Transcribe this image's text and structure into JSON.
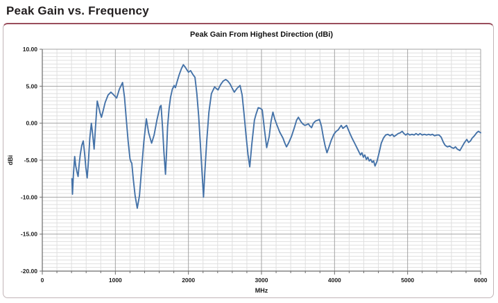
{
  "page_title": "Peak Gain vs. Frequency",
  "colors": {
    "line": "#4472a8",
    "grid_minor": "#dfdfdf",
    "grid_major": "#a3a3a3",
    "axis": "#6b6b6b",
    "text": "#1a1a1a",
    "panel_border": "#c2b4b7",
    "panel_border_top": "#9a4e5c"
  },
  "chart_data": {
    "type": "line",
    "title": "Peak Gain From Highest Direction (dBi)",
    "xlabel": "MHz",
    "ylabel": "dBi",
    "xlim": [
      0,
      6000
    ],
    "ylim": [
      -20,
      10
    ],
    "grid": true,
    "x_minor_step": 200,
    "y_minor_step": 0.5,
    "x_ticks": [
      {
        "v": 0,
        "label": "0"
      },
      {
        "v": 1000,
        "label": "1000"
      },
      {
        "v": 2000,
        "label": "2000"
      },
      {
        "v": 3000,
        "label": "3000"
      },
      {
        "v": 4000,
        "label": "4000"
      },
      {
        "v": 5000,
        "label": "5000"
      },
      {
        "v": 6000,
        "label": "6000"
      }
    ],
    "y_ticks": [
      {
        "v": 10,
        "label": "10.00"
      },
      {
        "v": 5,
        "label": "5.00"
      },
      {
        "v": 0,
        "label": "0.00"
      },
      {
        "v": -5,
        "label": "-5.00"
      },
      {
        "v": -10,
        "label": "-10.00"
      },
      {
        "v": -15,
        "label": "-15.00"
      },
      {
        "v": -20,
        "label": "-20.00"
      }
    ],
    "legend": "none",
    "series": [
      {
        "points": [
          [
            405,
            -7.5
          ],
          [
            413,
            -9.6
          ],
          [
            425,
            -7.0
          ],
          [
            443,
            -4.5
          ],
          [
            458,
            -5.8
          ],
          [
            475,
            -6.6
          ],
          [
            490,
            -7.2
          ],
          [
            505,
            -5.5
          ],
          [
            520,
            -4.2
          ],
          [
            540,
            -3.0
          ],
          [
            560,
            -2.4
          ],
          [
            578,
            -4.0
          ],
          [
            596,
            -6.0
          ],
          [
            614,
            -7.4
          ],
          [
            632,
            -5.0
          ],
          [
            650,
            -2.0
          ],
          [
            671,
            0.0
          ],
          [
            688,
            -1.4
          ],
          [
            709,
            -3.5
          ],
          [
            728,
            -0.5
          ],
          [
            752,
            3.0
          ],
          [
            772,
            2.2
          ],
          [
            790,
            1.4
          ],
          [
            810,
            0.8
          ],
          [
            835,
            1.8
          ],
          [
            860,
            2.8
          ],
          [
            900,
            3.8
          ],
          [
            939,
            4.2
          ],
          [
            970,
            3.9
          ],
          [
            1018,
            3.4
          ],
          [
            1055,
            4.6
          ],
          [
            1098,
            5.5
          ],
          [
            1125,
            3.5
          ],
          [
            1150,
            0.5
          ],
          [
            1175,
            -2.5
          ],
          [
            1200,
            -4.8
          ],
          [
            1212,
            -5.2
          ],
          [
            1225,
            -5.4
          ],
          [
            1245,
            -7.5
          ],
          [
            1270,
            -9.8
          ],
          [
            1300,
            -11.5
          ],
          [
            1330,
            -9.8
          ],
          [
            1360,
            -6.0
          ],
          [
            1390,
            -2.5
          ],
          [
            1424,
            0.6
          ],
          [
            1455,
            -1.3
          ],
          [
            1496,
            -2.7
          ],
          [
            1530,
            -1.6
          ],
          [
            1570,
            0.5
          ],
          [
            1610,
            2.2
          ],
          [
            1625,
            2.4
          ],
          [
            1645,
            -0.5
          ],
          [
            1665,
            -4.0
          ],
          [
            1686,
            -6.9
          ],
          [
            1700,
            -4.0
          ],
          [
            1715,
            -0.5
          ],
          [
            1735,
            2.0
          ],
          [
            1755,
            3.5
          ],
          [
            1780,
            4.6
          ],
          [
            1805,
            5.1
          ],
          [
            1822,
            4.8
          ],
          [
            1845,
            5.6
          ],
          [
            1875,
            6.6
          ],
          [
            1905,
            7.4
          ],
          [
            1930,
            7.9
          ],
          [
            1955,
            7.6
          ],
          [
            1980,
            7.2
          ],
          [
            2000,
            6.9
          ],
          [
            2030,
            7.1
          ],
          [
            2060,
            6.6
          ],
          [
            2090,
            6.2
          ],
          [
            2115,
            4.0
          ],
          [
            2140,
            1.0
          ],
          [
            2165,
            -3.0
          ],
          [
            2185,
            -6.5
          ],
          [
            2206,
            -10.0
          ],
          [
            2225,
            -6.5
          ],
          [
            2250,
            -2.5
          ],
          [
            2280,
            1.5
          ],
          [
            2315,
            4.0
          ],
          [
            2358,
            4.9
          ],
          [
            2380,
            4.7
          ],
          [
            2405,
            4.5
          ],
          [
            2440,
            5.2
          ],
          [
            2475,
            5.7
          ],
          [
            2510,
            5.9
          ],
          [
            2540,
            5.7
          ],
          [
            2570,
            5.3
          ],
          [
            2600,
            4.7
          ],
          [
            2628,
            4.2
          ],
          [
            2665,
            4.7
          ],
          [
            2707,
            5.1
          ],
          [
            2735,
            3.8
          ],
          [
            2762,
            1.2
          ],
          [
            2790,
            -1.8
          ],
          [
            2815,
            -4.2
          ],
          [
            2840,
            -5.9
          ],
          [
            2868,
            -2.8
          ],
          [
            2903,
            0.4
          ],
          [
            2925,
            1.2
          ],
          [
            2955,
            2.1
          ],
          [
            2985,
            2.0
          ],
          [
            3010,
            1.8
          ],
          [
            3040,
            -0.8
          ],
          [
            3071,
            -3.3
          ],
          [
            3105,
            -1.8
          ],
          [
            3130,
            0.2
          ],
          [
            3157,
            1.5
          ],
          [
            3180,
            0.6
          ],
          [
            3214,
            -0.3
          ],
          [
            3250,
            -1.2
          ],
          [
            3293,
            -2.0
          ],
          [
            3320,
            -2.7
          ],
          [
            3343,
            -3.2
          ],
          [
            3375,
            -2.6
          ],
          [
            3410,
            -1.8
          ],
          [
            3450,
            -0.6
          ],
          [
            3480,
            0.4
          ],
          [
            3505,
            0.8
          ],
          [
            3540,
            0.2
          ],
          [
            3565,
            -0.1
          ],
          [
            3594,
            -0.3
          ],
          [
            3620,
            -0.2
          ],
          [
            3642,
            -0.1
          ],
          [
            3665,
            -0.4
          ],
          [
            3685,
            -0.6
          ],
          [
            3710,
            0.0
          ],
          [
            3740,
            0.3
          ],
          [
            3770,
            0.4
          ],
          [
            3794,
            0.5
          ],
          [
            3820,
            -0.4
          ],
          [
            3845,
            -1.8
          ],
          [
            3870,
            -3.0
          ],
          [
            3896,
            -4.0
          ],
          [
            3925,
            -3.2
          ],
          [
            3955,
            -2.3
          ],
          [
            3990,
            -1.5
          ],
          [
            4022,
            -1.1
          ],
          [
            4050,
            -0.9
          ],
          [
            4070,
            -0.6
          ],
          [
            4092,
            -0.3
          ],
          [
            4115,
            -0.7
          ],
          [
            4140,
            -0.5
          ],
          [
            4165,
            -0.3
          ],
          [
            4190,
            -0.9
          ],
          [
            4220,
            -1.6
          ],
          [
            4244,
            -2.1
          ],
          [
            4275,
            -2.7
          ],
          [
            4305,
            -3.3
          ],
          [
            4330,
            -3.8
          ],
          [
            4355,
            -4.3
          ],
          [
            4375,
            -4.0
          ],
          [
            4395,
            -4.6
          ],
          [
            4415,
            -4.3
          ],
          [
            4435,
            -4.9
          ],
          [
            4455,
            -4.6
          ],
          [
            4475,
            -5.1
          ],
          [
            4495,
            -4.9
          ],
          [
            4515,
            -5.3
          ],
          [
            4535,
            -5.1
          ],
          [
            4554,
            -5.8
          ],
          [
            4580,
            -5.2
          ],
          [
            4610,
            -4.0
          ],
          [
            4640,
            -2.7
          ],
          [
            4670,
            -2.0
          ],
          [
            4700,
            -1.6
          ],
          [
            4730,
            -1.5
          ],
          [
            4760,
            -1.7
          ],
          [
            4790,
            -1.5
          ],
          [
            4815,
            -1.8
          ],
          [
            4845,
            -1.6
          ],
          [
            4870,
            -1.4
          ],
          [
            4900,
            -1.3
          ],
          [
            4926,
            -1.1
          ],
          [
            4950,
            -1.4
          ],
          [
            4975,
            -1.6
          ],
          [
            5000,
            -1.4
          ],
          [
            5030,
            -1.6
          ],
          [
            5060,
            -1.5
          ],
          [
            5090,
            -1.6
          ],
          [
            5115,
            -1.4
          ],
          [
            5145,
            -1.6
          ],
          [
            5170,
            -1.4
          ],
          [
            5200,
            -1.6
          ],
          [
            5230,
            -1.5
          ],
          [
            5260,
            -1.6
          ],
          [
            5285,
            -1.5
          ],
          [
            5315,
            -1.6
          ],
          [
            5340,
            -1.5
          ],
          [
            5370,
            -1.7
          ],
          [
            5400,
            -1.6
          ],
          [
            5430,
            -1.6
          ],
          [
            5460,
            -1.9
          ],
          [
            5490,
            -2.6
          ],
          [
            5515,
            -3.0
          ],
          [
            5545,
            -3.2
          ],
          [
            5575,
            -3.1
          ],
          [
            5605,
            -3.3
          ],
          [
            5630,
            -3.4
          ],
          [
            5655,
            -3.2
          ],
          [
            5680,
            -3.5
          ],
          [
            5715,
            -3.7
          ],
          [
            5745,
            -3.2
          ],
          [
            5780,
            -2.6
          ],
          [
            5810,
            -2.2
          ],
          [
            5835,
            -2.6
          ],
          [
            5860,
            -2.4
          ],
          [
            5885,
            -2.0
          ],
          [
            5915,
            -1.7
          ],
          [
            5945,
            -1.3
          ],
          [
            5970,
            -1.1
          ],
          [
            6000,
            -1.3
          ]
        ]
      }
    ]
  }
}
